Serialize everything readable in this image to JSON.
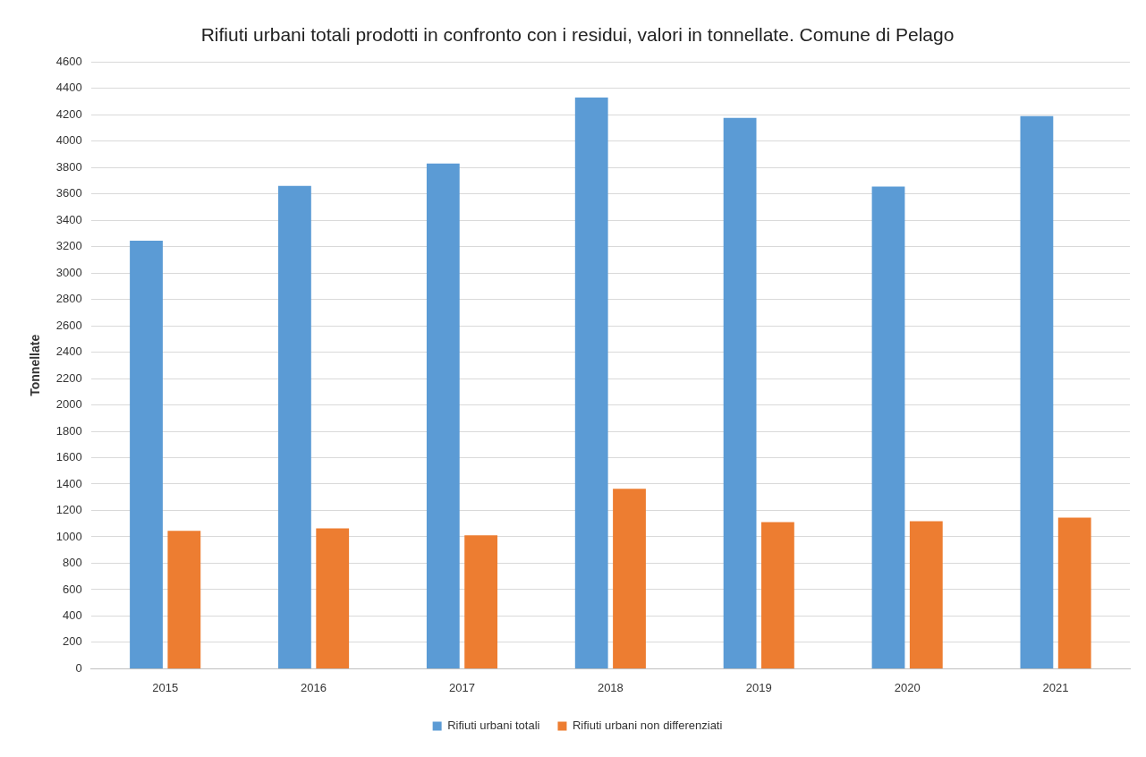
{
  "chart_data": {
    "type": "bar",
    "title": "Rifiuti urbani totali prodotti in confronto con i residui, valori in tonnellate. Comune di Pelago",
    "ylabel": "Tonnellate",
    "categories": [
      "2015",
      "2016",
      "2017",
      "2018",
      "2019",
      "2020",
      "2021"
    ],
    "series": [
      {
        "name": "Rifiuti urbani totali",
        "color": "#5b9bd5",
        "values": [
          3245,
          3660,
          3830,
          4330,
          4175,
          3655,
          4190
        ]
      },
      {
        "name": "Rifiuti urbani non differenziati",
        "color": "#ed7d31",
        "values": [
          1045,
          1065,
          1012,
          1365,
          1112,
          1118,
          1145
        ]
      }
    ],
    "ylim": [
      0,
      4600
    ],
    "yticks": [
      0,
      200,
      400,
      600,
      800,
      1000,
      1200,
      1400,
      1600,
      1800,
      2000,
      2200,
      2400,
      2600,
      2800,
      3000,
      3200,
      3400,
      3600,
      3800,
      4000,
      4200,
      4400,
      4600
    ],
    "grid": "y",
    "legend": "bottom"
  }
}
